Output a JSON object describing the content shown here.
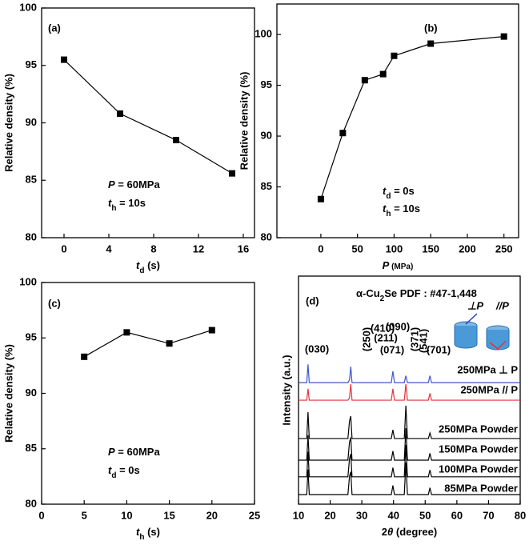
{
  "chart_data": [
    {
      "type": "line",
      "panel_label": "(a)",
      "marker": "square",
      "color": "#000000",
      "x": [
        0,
        5,
        10,
        15
      ],
      "values": [
        95.5,
        90.8,
        88.5,
        85.6
      ],
      "xlim": [
        -2,
        17
      ],
      "xticks": [
        0,
        4,
        8,
        12,
        16
      ],
      "ylim": [
        80,
        100
      ],
      "yticks": [
        80,
        85,
        90,
        95,
        100
      ],
      "xlabel": [
        {
          "text": "t",
          "style": "italic"
        },
        {
          "text": "d",
          "style": "sub"
        },
        {
          "text": " (s)"
        }
      ],
      "ylabel": "Relative density (%)",
      "annotations": [
        [
          {
            "text": "P",
            "style": "italic"
          },
          {
            "text": " = 60MPa"
          }
        ],
        [
          {
            "text": "t",
            "style": "italic"
          },
          {
            "text": "h",
            "style": "sub"
          },
          {
            "text": " = 10s"
          }
        ]
      ]
    },
    {
      "type": "line",
      "panel_label": "(b)",
      "marker": "square",
      "color": "#000000",
      "x": [
        0,
        30,
        60,
        85,
        100,
        150,
        250
      ],
      "values": [
        83.8,
        90.3,
        95.5,
        96.1,
        97.9,
        99.1,
        99.8
      ],
      "xlim": [
        -60,
        270
      ],
      "xticks": [
        0,
        50,
        100,
        150,
        200,
        250
      ],
      "ylim": [
        80,
        103
      ],
      "yticks": [
        80,
        85,
        90,
        95,
        100
      ],
      "xlabel": [
        {
          "text": "P",
          "style": "italic"
        },
        {
          "text": " (MPa)",
          "style": "small"
        }
      ],
      "ylabel": "Relative density (%)",
      "annotations": [
        [
          {
            "text": "t",
            "style": "italic"
          },
          {
            "text": "d",
            "style": "sub"
          },
          {
            "text": " = 0s"
          }
        ],
        [
          {
            "text": "t",
            "style": "italic"
          },
          {
            "text": "h",
            "style": "sub"
          },
          {
            "text": " = 10s"
          }
        ]
      ]
    },
    {
      "type": "line",
      "panel_label": "(c)",
      "marker": "square",
      "color": "#000000",
      "x": [
        5,
        10,
        15,
        20
      ],
      "values": [
        93.3,
        95.5,
        94.5,
        95.7
      ],
      "xlim": [
        0,
        25
      ],
      "xticks": [
        0,
        5,
        10,
        15,
        20,
        25
      ],
      "ylim": [
        80,
        100
      ],
      "yticks": [
        80,
        85,
        90,
        95,
        100
      ],
      "xlabel": [
        {
          "text": "t",
          "style": "italic"
        },
        {
          "text": "h",
          "style": "sub"
        },
        {
          "text": " (s)"
        }
      ],
      "ylabel": "Relative density (%)",
      "annotations": [
        [
          {
            "text": "P",
            "style": "italic"
          },
          {
            "text": " = 60MPa"
          }
        ],
        [
          {
            "text": "t",
            "style": "italic"
          },
          {
            "text": "d",
            "style": "sub"
          },
          {
            "text": " = 0s"
          }
        ]
      ]
    },
    {
      "type": "line",
      "panel_label": "(d)",
      "x": [
        10,
        12.6,
        13,
        13.4,
        25.6,
        26.1,
        26.5,
        26.9,
        39.3,
        39.8,
        40.3,
        43.4,
        43.9,
        44.4,
        51,
        51.5,
        52,
        80
      ],
      "series": [
        {
          "name": "250MPa ⊥ P",
          "color": "#3a56c8",
          "values": [
            53.3,
            53.3,
            61.3,
            53.3,
            53.3,
            54.5,
            60.3,
            53.3,
            53.3,
            58.3,
            53.3,
            53.3,
            56.3,
            53.3,
            53.3,
            56.3,
            53.3,
            53.3
          ]
        },
        {
          "name": "250MPa // P",
          "color": "#e8303a",
          "values": [
            45.6,
            45.6,
            50.6,
            45.6,
            45.6,
            46.6,
            52.6,
            45.6,
            45.6,
            50.6,
            45.6,
            45.6,
            52.6,
            45.6,
            45.6,
            48.6,
            45.6,
            45.6
          ]
        },
        {
          "name": "250MPa Powder",
          "color": "#000000",
          "values": [
            28.8,
            28.8,
            40.4,
            28.8,
            28.8,
            36.5,
            38.6,
            28.8,
            28.8,
            32.6,
            28.8,
            28.8,
            43.2,
            28.8,
            28.8,
            31.2,
            28.8,
            28.8
          ]
        },
        {
          "name": "150MPa Powder",
          "color": "#000000",
          "values": [
            19.3,
            19.3,
            30.3,
            19.3,
            19.3,
            27.3,
            29.3,
            19.3,
            19.3,
            23.3,
            19.3,
            19.3,
            33.3,
            19.3,
            19.3,
            22.3,
            19.3,
            19.3
          ]
        },
        {
          "name": "100MPa Powder",
          "color": "#000000",
          "values": [
            12,
            12,
            23,
            12,
            12,
            20,
            22,
            12,
            12,
            16,
            12,
            12,
            26,
            12,
            12,
            15,
            12,
            12
          ]
        },
        {
          "name": "85MPa Powder",
          "color": "#000000",
          "values": [
            4.2,
            4.2,
            15.2,
            4.2,
            4.2,
            12.2,
            14.2,
            4.2,
            4.2,
            8.2,
            4.2,
            4.2,
            18.2,
            4.2,
            4.2,
            7.2,
            4.2,
            4.2
          ]
        }
      ],
      "xlim": [
        10,
        80
      ],
      "xticks": [
        10,
        20,
        30,
        40,
        50,
        60,
        70,
        80
      ],
      "ylim": [
        0,
        100
      ],
      "xlabel": [
        {
          "text": "2"
        },
        {
          "text": "θ",
          "style": "italic"
        },
        {
          "text": " (degree)"
        }
      ],
      "ylabel": "Intensity (a.u.)",
      "annotations": [
        [
          {
            "text": "α-Cu"
          },
          {
            "text": "2",
            "style": "sub"
          },
          {
            "text": "Se    PDF : #47-1,448"
          }
        ]
      ],
      "peak_labels": [
        "(030)",
        "(250)",
        "(410)",
        "(211)",
        "(071)",
        "(090)",
        "(371)",
        "(541)",
        "(701)"
      ],
      "icon_labels": [
        "⊥P",
        "//P"
      ]
    }
  ]
}
